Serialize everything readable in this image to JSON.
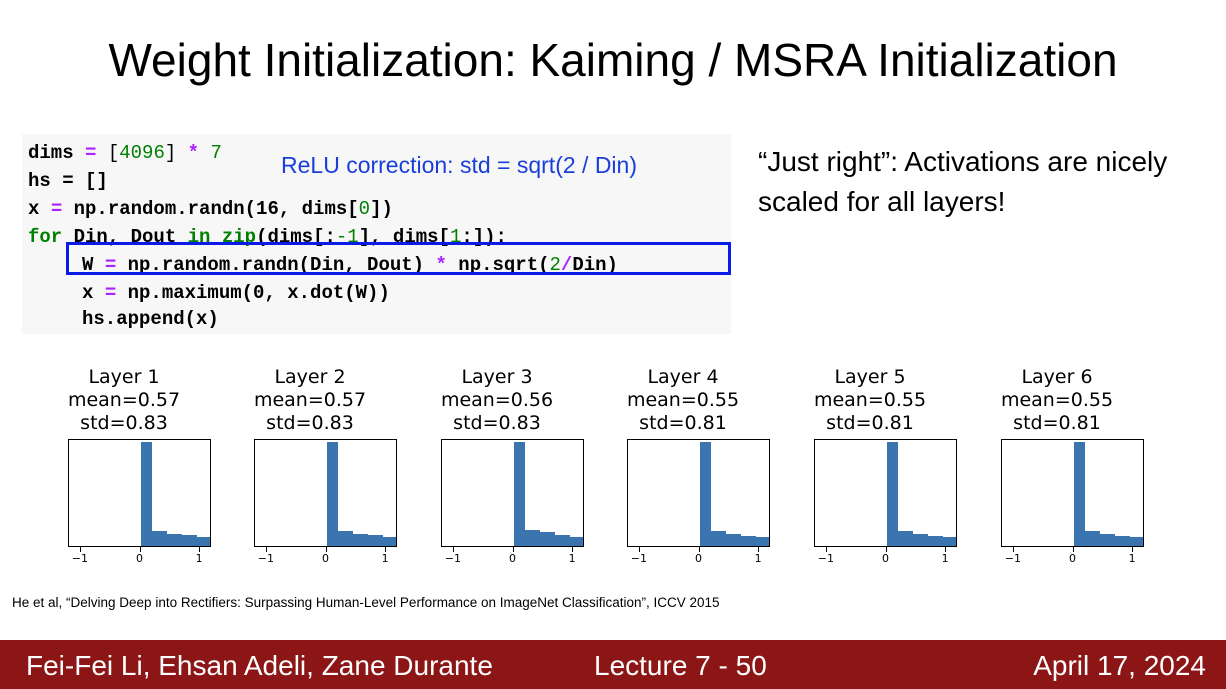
{
  "slide": {
    "title": "Weight Initialization: Kaiming / MSRA Initialization"
  },
  "code": {
    "line1_a": "dims ",
    "line1_op": "=",
    "line1_b": " [",
    "line1_num": "4096",
    "line1_c": "] ",
    "line1_op2": "*",
    "line1_num2": " 7",
    "line2": "hs = []",
    "line3_a": "x ",
    "line3_op": "=",
    "line3_b": " np.random.randn(16, dims[",
    "line3_num": "0",
    "line3_c": "])",
    "line4_kw": "for",
    "line4_a": " Din, Dout ",
    "line4_kw2": "in",
    "line4_sp": " ",
    "line4_kw3": "zip",
    "line4_b": "(dims[:",
    "line4_num": "-1",
    "line4_c": "], dims[",
    "line4_num2": "1",
    "line4_d": ":]):",
    "line5_a": "W ",
    "line5_op": "=",
    "line5_b": " np.random.randn(Din, Dout) ",
    "line5_op2": "*",
    "line5_c": " np.sqrt(",
    "line5_num": "2",
    "line5_op3": "/",
    "line5_d": "Din)",
    "line6_a": "x ",
    "line6_op": "=",
    "line6_b": " np.maximum(0, x.dot(W))",
    "line7": "hs.append(x)"
  },
  "annotation": {
    "relu_note": "ReLU correction: std = sqrt(2 / Din)",
    "side_note": "“Just right”: Activations are nicely scaled for all layers!"
  },
  "chart_data": {
    "type": "bar",
    "x_ticks": [
      "−1",
      "0",
      "1"
    ],
    "xlim": [
      -1.2,
      1.2
    ],
    "panels": [
      {
        "layer": "Layer 1",
        "mean": "mean=0.57",
        "std": "std=0.83",
        "bins": [
          1.0,
          0.14,
          0.12,
          0.11,
          0.09
        ]
      },
      {
        "layer": "Layer 2",
        "mean": "mean=0.57",
        "std": "std=0.83",
        "bins": [
          1.0,
          0.14,
          0.12,
          0.11,
          0.09
        ]
      },
      {
        "layer": "Layer 3",
        "mean": "mean=0.56",
        "std": "std=0.83",
        "bins": [
          1.0,
          0.15,
          0.13,
          0.11,
          0.09
        ]
      },
      {
        "layer": "Layer 4",
        "mean": "mean=0.55",
        "std": "std=0.81",
        "bins": [
          1.0,
          0.14,
          0.12,
          0.1,
          0.09
        ]
      },
      {
        "layer": "Layer 5",
        "mean": "mean=0.55",
        "std": "std=0.81",
        "bins": [
          1.0,
          0.14,
          0.12,
          0.1,
          0.09
        ]
      },
      {
        "layer": "Layer 6",
        "mean": "mean=0.55",
        "std": "std=0.81",
        "bins": [
          1.0,
          0.14,
          0.12,
          0.1,
          0.09
        ]
      }
    ]
  },
  "citation": "He et al, “Delving Deep into Rectifiers: Surpassing Human-Level Performance on ImageNet Classification”, ICCV 2015",
  "footer": {
    "authors": "Fei-Fei Li, Ehsan Adeli, Zane Durante",
    "lecture": "Lecture 7 -   50",
    "date": "April 17, 2024"
  },
  "colors": {
    "bar": "#3a75b0",
    "footer_bg": "#8c1515",
    "highlight_border": "#0a1be8",
    "annotation": "#1a3fd9"
  }
}
